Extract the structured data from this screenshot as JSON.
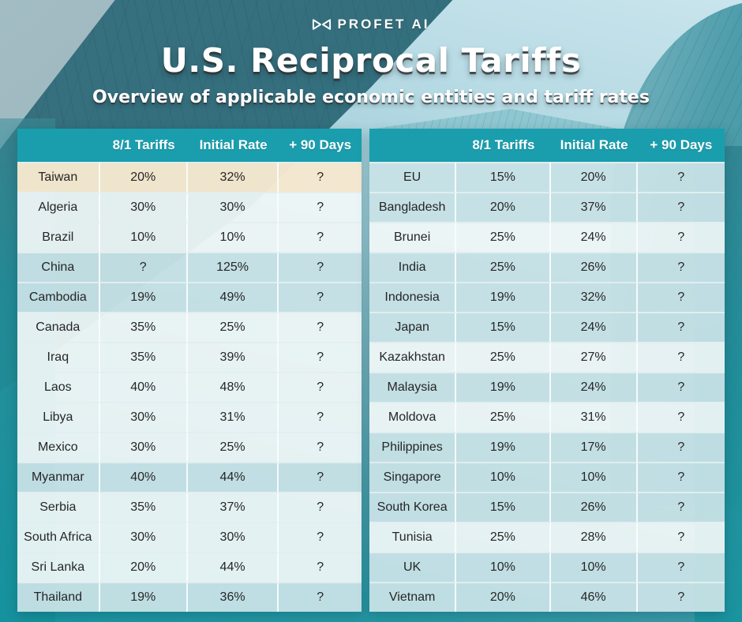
{
  "brand": {
    "name": "PROFET AI",
    "icon": "bowtie-logo-icon"
  },
  "header": {
    "title": "U.S. Reciprocal Tariffs",
    "subtitle": "Overview of applicable economic entities and tariff rates"
  },
  "colors": {
    "header_bg": "#1A9EAE",
    "row_teal": "#C7E2E6",
    "row_light": "#F1F8F8",
    "row_highlight": "#F6E8CE",
    "cell_text": "#262626",
    "background_teal": "#1C96A4"
  },
  "chart_data": [
    {
      "type": "table",
      "title": "U.S. Reciprocal Tariffs — left table",
      "columns": [
        "",
        "8/1 Tariffs",
        "Initial Rate",
        "+ 90 Days"
      ],
      "rows": [
        [
          "Taiwan",
          "20%",
          "32%",
          "?"
        ],
        [
          "Algeria",
          "30%",
          "30%",
          "?"
        ],
        [
          "Brazil",
          "10%",
          "10%",
          "?"
        ],
        [
          "China",
          "?",
          "125%",
          "?"
        ],
        [
          "Cambodia",
          "19%",
          "49%",
          "?"
        ],
        [
          "Canada",
          "35%",
          "25%",
          "?"
        ],
        [
          "Iraq",
          "35%",
          "39%",
          "?"
        ],
        [
          "Laos",
          "40%",
          "48%",
          "?"
        ],
        [
          "Libya",
          "30%",
          "31%",
          "?"
        ],
        [
          "Mexico",
          "30%",
          "25%",
          "?"
        ],
        [
          "Myanmar",
          "40%",
          "44%",
          "?"
        ],
        [
          "Serbia",
          "35%",
          "37%",
          "?"
        ],
        [
          "South Africa",
          "30%",
          "30%",
          "?"
        ],
        [
          "Sri Lanka",
          "20%",
          "44%",
          "?"
        ],
        [
          "Thailand",
          "19%",
          "36%",
          "?"
        ]
      ],
      "row_tints": [
        "highlight",
        "light",
        "light",
        "teal",
        "teal",
        "light",
        "light",
        "light",
        "light",
        "light",
        "teal",
        "light",
        "light",
        "light",
        "teal"
      ]
    },
    {
      "type": "table",
      "title": "U.S. Reciprocal Tariffs — right table",
      "columns": [
        "",
        "8/1 Tariffs",
        "Initial Rate",
        "+ 90 Days"
      ],
      "rows": [
        [
          "EU",
          "15%",
          "20%",
          "?"
        ],
        [
          "Bangladesh",
          "20%",
          "37%",
          "?"
        ],
        [
          "Brunei",
          "25%",
          "24%",
          "?"
        ],
        [
          "India",
          "25%",
          "26%",
          "?"
        ],
        [
          "Indonesia",
          "19%",
          "32%",
          "?"
        ],
        [
          "Japan",
          "15%",
          "24%",
          "?"
        ],
        [
          "Kazakhstan",
          "25%",
          "27%",
          "?"
        ],
        [
          "Malaysia",
          "19%",
          "24%",
          "?"
        ],
        [
          "Moldova",
          "25%",
          "31%",
          "?"
        ],
        [
          "Philippines",
          "19%",
          "17%",
          "?"
        ],
        [
          "Singapore",
          "10%",
          "10%",
          "?"
        ],
        [
          "South Korea",
          "15%",
          "26%",
          "?"
        ],
        [
          "Tunisia",
          "25%",
          "28%",
          "?"
        ],
        [
          "UK",
          "10%",
          "10%",
          "?"
        ],
        [
          "Vietnam",
          "20%",
          "46%",
          "?"
        ]
      ],
      "row_tints": [
        "teal",
        "teal",
        "light",
        "teal",
        "teal",
        "teal",
        "light",
        "teal",
        "light",
        "teal",
        "teal",
        "teal",
        "light",
        "teal",
        "teal"
      ]
    }
  ]
}
